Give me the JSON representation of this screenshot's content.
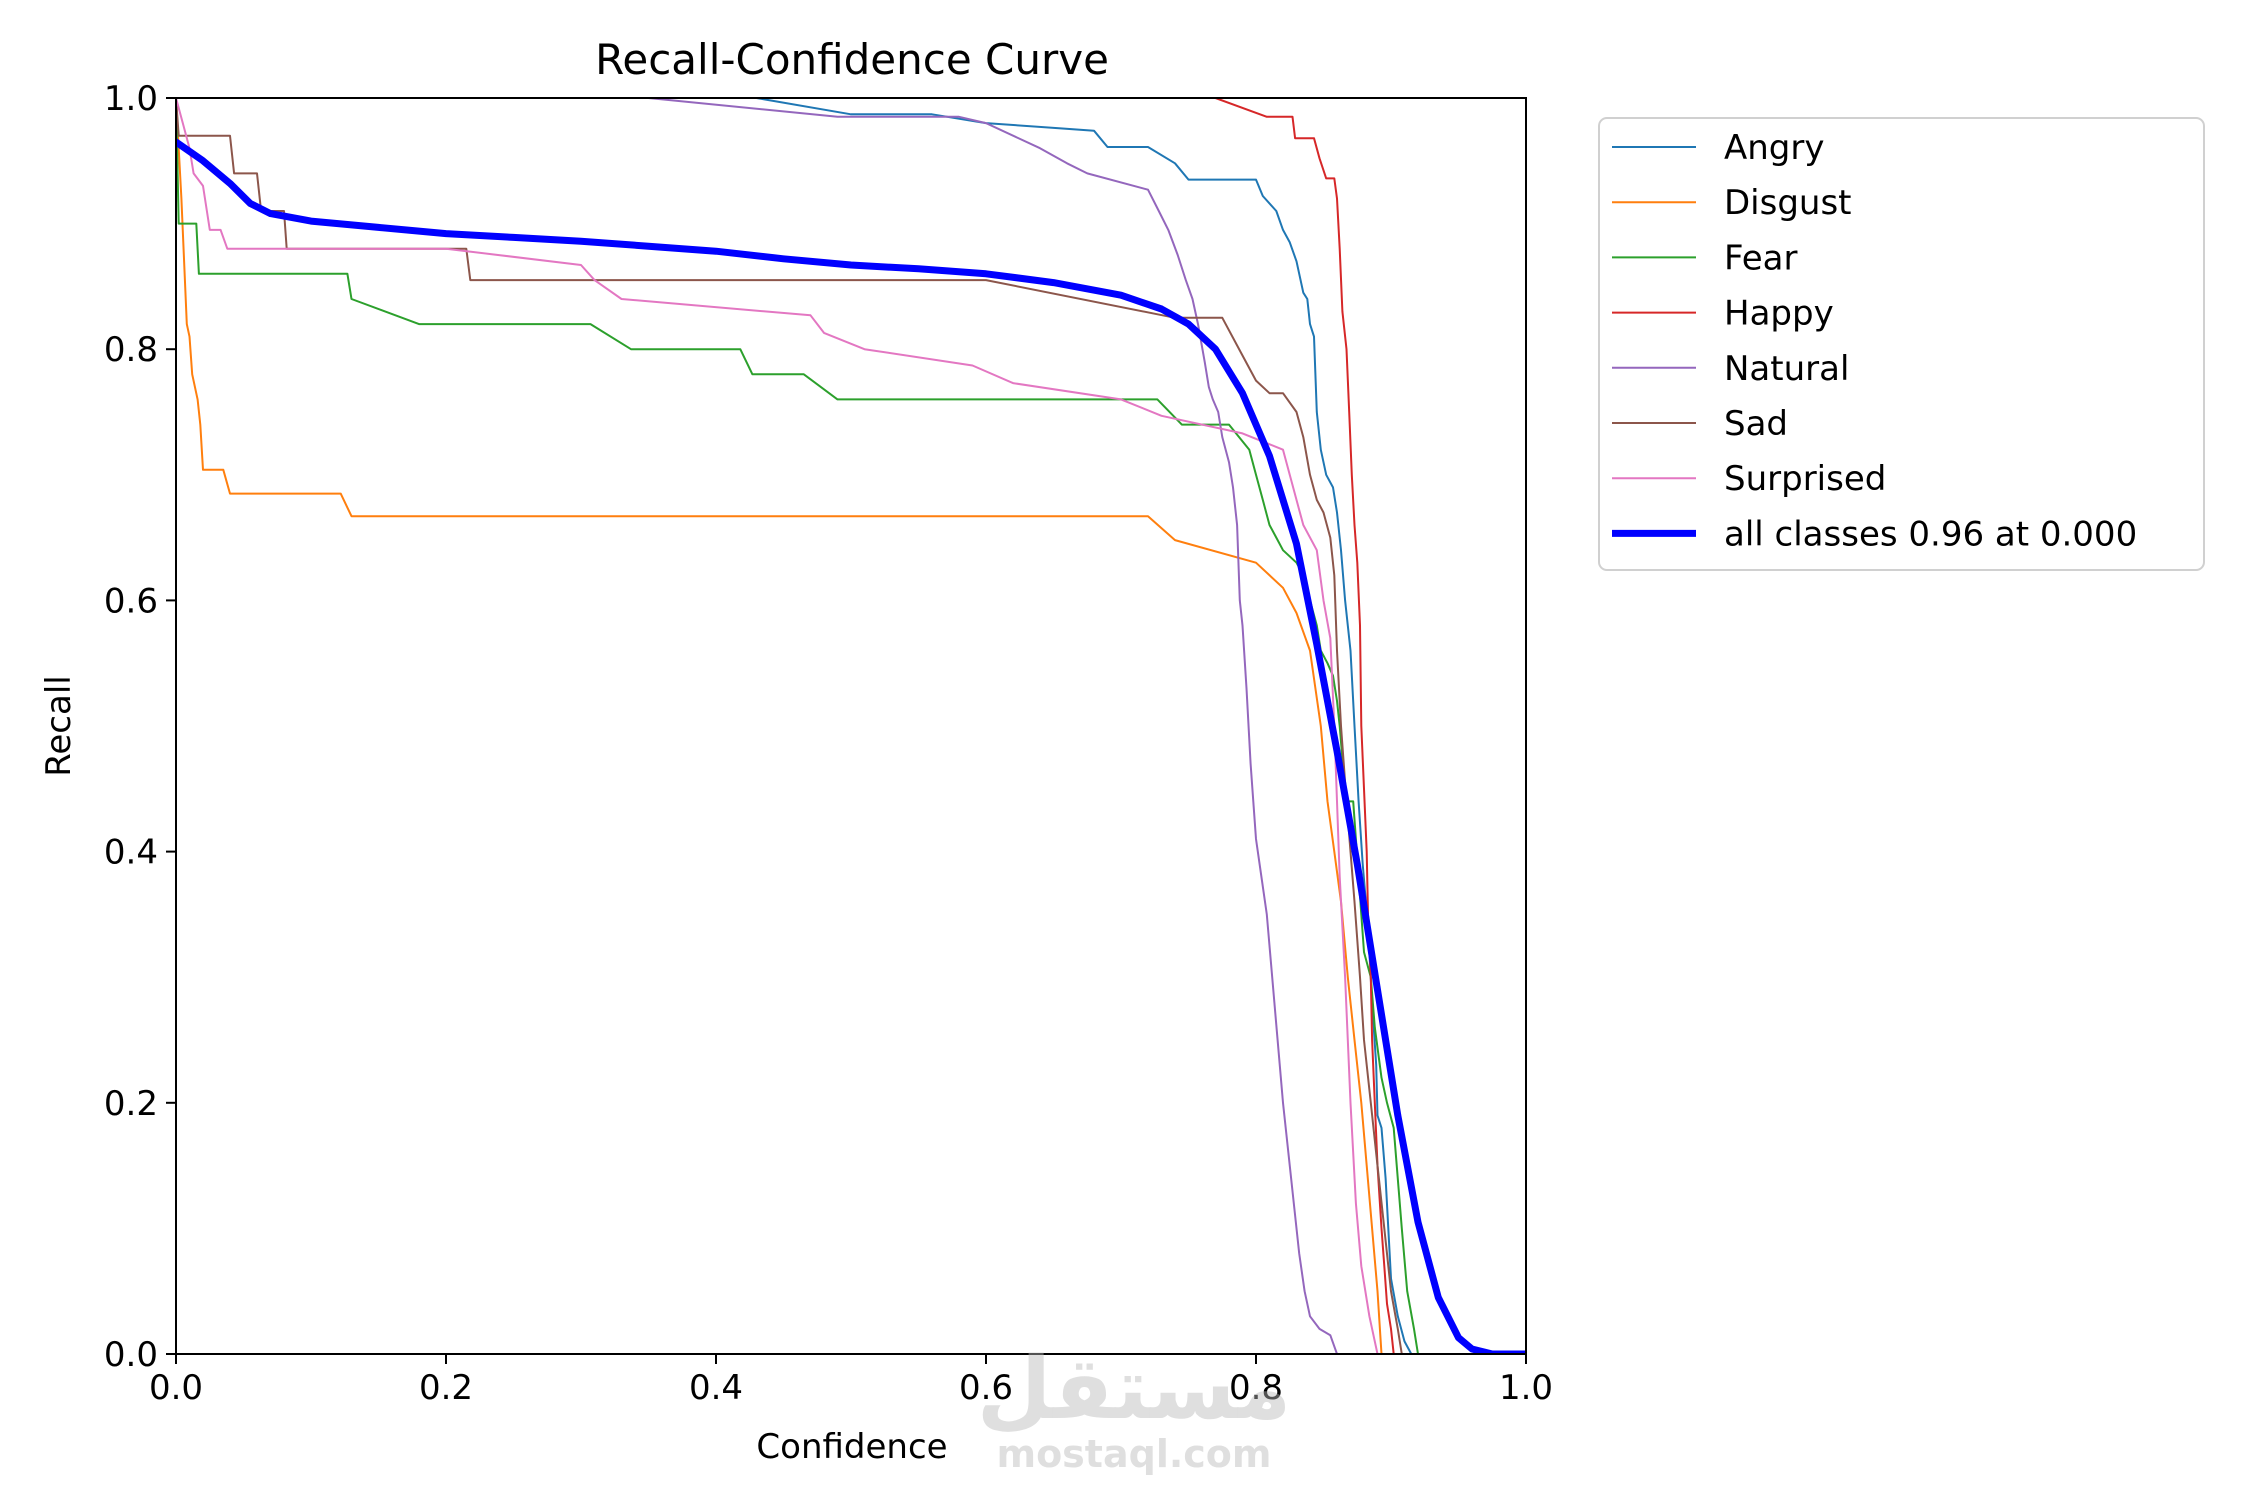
{
  "chart_data": {
    "type": "line",
    "title": "Recall-Confidence Curve",
    "xlabel": "Confidence",
    "ylabel": "Recall",
    "xlim": [
      0,
      1
    ],
    "ylim": [
      0,
      1
    ],
    "xticks": [
      "0.0",
      "0.2",
      "0.4",
      "0.6",
      "0.8",
      "1.0"
    ],
    "yticks": [
      "0.0",
      "0.2",
      "0.4",
      "0.6",
      "0.8",
      "1.0"
    ],
    "grid": false,
    "legend_position": "outside top-right",
    "series": [
      {
        "name": "Angry",
        "color": "#1f77b4",
        "width": 2,
        "points": [
          [
            0.0,
            1.0
          ],
          [
            0.43,
            1.0
          ],
          [
            0.5,
            0.987
          ],
          [
            0.56,
            0.987
          ],
          [
            0.6,
            0.98
          ],
          [
            0.68,
            0.974
          ],
          [
            0.69,
            0.961
          ],
          [
            0.72,
            0.961
          ],
          [
            0.74,
            0.948
          ],
          [
            0.75,
            0.935
          ],
          [
            0.8,
            0.935
          ],
          [
            0.805,
            0.922
          ],
          [
            0.815,
            0.91
          ],
          [
            0.82,
            0.895
          ],
          [
            0.825,
            0.885
          ],
          [
            0.83,
            0.87
          ],
          [
            0.835,
            0.845
          ],
          [
            0.838,
            0.84
          ],
          [
            0.84,
            0.82
          ],
          [
            0.843,
            0.81
          ],
          [
            0.845,
            0.75
          ],
          [
            0.848,
            0.72
          ],
          [
            0.852,
            0.7
          ],
          [
            0.857,
            0.69
          ],
          [
            0.86,
            0.67
          ],
          [
            0.863,
            0.64
          ],
          [
            0.866,
            0.6
          ],
          [
            0.868,
            0.58
          ],
          [
            0.87,
            0.56
          ],
          [
            0.873,
            0.5
          ],
          [
            0.876,
            0.44
          ],
          [
            0.879,
            0.39
          ],
          [
            0.883,
            0.34
          ],
          [
            0.886,
            0.28
          ],
          [
            0.889,
            0.23
          ],
          [
            0.89,
            0.19
          ],
          [
            0.893,
            0.18
          ],
          [
            0.896,
            0.14
          ],
          [
            0.898,
            0.1
          ],
          [
            0.9,
            0.06
          ],
          [
            0.905,
            0.03
          ],
          [
            0.91,
            0.01
          ],
          [
            0.915,
            0.0
          ],
          [
            1.0,
            0.0
          ]
        ]
      },
      {
        "name": "Disgust",
        "color": "#ff7f0e",
        "width": 2,
        "points": [
          [
            0.0,
            1.0
          ],
          [
            0.004,
            0.92
          ],
          [
            0.008,
            0.82
          ],
          [
            0.01,
            0.81
          ],
          [
            0.012,
            0.78
          ],
          [
            0.016,
            0.76
          ],
          [
            0.018,
            0.74
          ],
          [
            0.02,
            0.704
          ],
          [
            0.035,
            0.704
          ],
          [
            0.04,
            0.685
          ],
          [
            0.122,
            0.685
          ],
          [
            0.13,
            0.667
          ],
          [
            0.72,
            0.667
          ],
          [
            0.74,
            0.648
          ],
          [
            0.8,
            0.63
          ],
          [
            0.82,
            0.61
          ],
          [
            0.83,
            0.59
          ],
          [
            0.84,
            0.56
          ],
          [
            0.848,
            0.5
          ],
          [
            0.853,
            0.44
          ],
          [
            0.858,
            0.4
          ],
          [
            0.863,
            0.36
          ],
          [
            0.868,
            0.3
          ],
          [
            0.873,
            0.25
          ],
          [
            0.878,
            0.2
          ],
          [
            0.882,
            0.15
          ],
          [
            0.886,
            0.1
          ],
          [
            0.89,
            0.05
          ],
          [
            0.893,
            0.0
          ],
          [
            1.0,
            0.0
          ]
        ]
      },
      {
        "name": "Fear",
        "color": "#2ca02c",
        "width": 2,
        "points": [
          [
            0.0,
            1.0
          ],
          [
            0.002,
            0.9
          ],
          [
            0.015,
            0.9
          ],
          [
            0.017,
            0.86
          ],
          [
            0.127,
            0.86
          ],
          [
            0.13,
            0.84
          ],
          [
            0.18,
            0.82
          ],
          [
            0.307,
            0.82
          ],
          [
            0.337,
            0.8
          ],
          [
            0.418,
            0.8
          ],
          [
            0.427,
            0.78
          ],
          [
            0.465,
            0.78
          ],
          [
            0.49,
            0.76
          ],
          [
            0.727,
            0.76
          ],
          [
            0.745,
            0.74
          ],
          [
            0.78,
            0.74
          ],
          [
            0.795,
            0.72
          ],
          [
            0.8,
            0.7
          ],
          [
            0.805,
            0.68
          ],
          [
            0.81,
            0.66
          ],
          [
            0.815,
            0.65
          ],
          [
            0.82,
            0.64
          ],
          [
            0.83,
            0.63
          ],
          [
            0.835,
            0.62
          ],
          [
            0.84,
            0.6
          ],
          [
            0.845,
            0.58
          ],
          [
            0.848,
            0.56
          ],
          [
            0.853,
            0.55
          ],
          [
            0.857,
            0.54
          ],
          [
            0.86,
            0.52
          ],
          [
            0.862,
            0.5
          ],
          [
            0.865,
            0.46
          ],
          [
            0.868,
            0.44
          ],
          [
            0.872,
            0.44
          ],
          [
            0.876,
            0.38
          ],
          [
            0.88,
            0.32
          ],
          [
            0.885,
            0.3
          ],
          [
            0.888,
            0.26
          ],
          [
            0.893,
            0.22
          ],
          [
            0.897,
            0.2
          ],
          [
            0.902,
            0.18
          ],
          [
            0.908,
            0.1
          ],
          [
            0.912,
            0.05
          ],
          [
            0.917,
            0.02
          ],
          [
            0.92,
            0.0
          ],
          [
            1.0,
            0.0
          ]
        ]
      },
      {
        "name": "Happy",
        "color": "#d62728",
        "width": 2,
        "points": [
          [
            0.77,
            1.0
          ],
          [
            0.808,
            0.985
          ],
          [
            0.827,
            0.985
          ],
          [
            0.829,
            0.968
          ],
          [
            0.843,
            0.968
          ],
          [
            0.847,
            0.952
          ],
          [
            0.852,
            0.936
          ],
          [
            0.858,
            0.936
          ],
          [
            0.86,
            0.92
          ],
          [
            0.862,
            0.88
          ],
          [
            0.864,
            0.83
          ],
          [
            0.867,
            0.8
          ],
          [
            0.869,
            0.75
          ],
          [
            0.871,
            0.7
          ],
          [
            0.873,
            0.66
          ],
          [
            0.875,
            0.63
          ],
          [
            0.877,
            0.58
          ],
          [
            0.878,
            0.5
          ],
          [
            0.88,
            0.45
          ],
          [
            0.882,
            0.4
          ],
          [
            0.883,
            0.35
          ],
          [
            0.885,
            0.3
          ],
          [
            0.886,
            0.25
          ],
          [
            0.888,
            0.2
          ],
          [
            0.89,
            0.15
          ],
          [
            0.893,
            0.1
          ],
          [
            0.895,
            0.07
          ],
          [
            0.897,
            0.04
          ],
          [
            0.9,
            0.02
          ],
          [
            0.902,
            0.0
          ],
          [
            1.0,
            0.0
          ]
        ]
      },
      {
        "name": "Natural",
        "color": "#9467bd",
        "width": 2,
        "points": [
          [
            0.35,
            1.0
          ],
          [
            0.49,
            0.985
          ],
          [
            0.58,
            0.985
          ],
          [
            0.6,
            0.98
          ],
          [
            0.64,
            0.96
          ],
          [
            0.66,
            0.948
          ],
          [
            0.675,
            0.94
          ],
          [
            0.72,
            0.927
          ],
          [
            0.728,
            0.91
          ],
          [
            0.735,
            0.895
          ],
          [
            0.742,
            0.875
          ],
          [
            0.748,
            0.855
          ],
          [
            0.753,
            0.84
          ],
          [
            0.757,
            0.82
          ],
          [
            0.762,
            0.79
          ],
          [
            0.765,
            0.77
          ],
          [
            0.768,
            0.76
          ],
          [
            0.772,
            0.75
          ],
          [
            0.775,
            0.73
          ],
          [
            0.78,
            0.71
          ],
          [
            0.783,
            0.69
          ],
          [
            0.786,
            0.66
          ],
          [
            0.788,
            0.6
          ],
          [
            0.79,
            0.58
          ],
          [
            0.793,
            0.53
          ],
          [
            0.796,
            0.47
          ],
          [
            0.798,
            0.44
          ],
          [
            0.8,
            0.41
          ],
          [
            0.804,
            0.38
          ],
          [
            0.808,
            0.35
          ],
          [
            0.812,
            0.3
          ],
          [
            0.816,
            0.25
          ],
          [
            0.82,
            0.2
          ],
          [
            0.824,
            0.16
          ],
          [
            0.828,
            0.12
          ],
          [
            0.832,
            0.08
          ],
          [
            0.836,
            0.05
          ],
          [
            0.84,
            0.03
          ],
          [
            0.847,
            0.02
          ],
          [
            0.855,
            0.015
          ],
          [
            0.86,
            0.0
          ],
          [
            1.0,
            0.0
          ]
        ]
      },
      {
        "name": "Sad",
        "color": "#8c564b",
        "width": 2,
        "points": [
          [
            0.0,
            1.0
          ],
          [
            0.002,
            0.97
          ],
          [
            0.04,
            0.97
          ],
          [
            0.043,
            0.94
          ],
          [
            0.06,
            0.94
          ],
          [
            0.063,
            0.91
          ],
          [
            0.08,
            0.91
          ],
          [
            0.082,
            0.88
          ],
          [
            0.215,
            0.88
          ],
          [
            0.218,
            0.855
          ],
          [
            0.6,
            0.855
          ],
          [
            0.74,
            0.825
          ],
          [
            0.775,
            0.825
          ],
          [
            0.79,
            0.795
          ],
          [
            0.8,
            0.775
          ],
          [
            0.81,
            0.765
          ],
          [
            0.82,
            0.765
          ],
          [
            0.83,
            0.75
          ],
          [
            0.835,
            0.73
          ],
          [
            0.84,
            0.7
          ],
          [
            0.845,
            0.68
          ],
          [
            0.85,
            0.67
          ],
          [
            0.855,
            0.65
          ],
          [
            0.858,
            0.62
          ],
          [
            0.86,
            0.56
          ],
          [
            0.863,
            0.5
          ],
          [
            0.867,
            0.44
          ],
          [
            0.87,
            0.4
          ],
          [
            0.873,
            0.36
          ],
          [
            0.877,
            0.3
          ],
          [
            0.88,
            0.25
          ],
          [
            0.885,
            0.2
          ],
          [
            0.89,
            0.15
          ],
          [
            0.895,
            0.1
          ],
          [
            0.9,
            0.05
          ],
          [
            0.905,
            0.02
          ],
          [
            0.908,
            0.0
          ],
          [
            1.0,
            0.0
          ]
        ]
      },
      {
        "name": "Surprised",
        "color": "#e377c2",
        "width": 2,
        "points": [
          [
            0.0,
            1.0
          ],
          [
            0.005,
            0.98
          ],
          [
            0.01,
            0.96
          ],
          [
            0.013,
            0.94
          ],
          [
            0.02,
            0.93
          ],
          [
            0.025,
            0.895
          ],
          [
            0.033,
            0.895
          ],
          [
            0.038,
            0.88
          ],
          [
            0.2,
            0.88
          ],
          [
            0.3,
            0.867
          ],
          [
            0.31,
            0.855
          ],
          [
            0.33,
            0.84
          ],
          [
            0.47,
            0.827
          ],
          [
            0.48,
            0.813
          ],
          [
            0.51,
            0.8
          ],
          [
            0.59,
            0.787
          ],
          [
            0.62,
            0.773
          ],
          [
            0.7,
            0.76
          ],
          [
            0.73,
            0.747
          ],
          [
            0.79,
            0.733
          ],
          [
            0.82,
            0.72
          ],
          [
            0.83,
            0.68
          ],
          [
            0.835,
            0.66
          ],
          [
            0.845,
            0.64
          ],
          [
            0.85,
            0.6
          ],
          [
            0.855,
            0.57
          ],
          [
            0.858,
            0.5
          ],
          [
            0.86,
            0.44
          ],
          [
            0.862,
            0.38
          ],
          [
            0.866,
            0.3
          ],
          [
            0.87,
            0.2
          ],
          [
            0.874,
            0.12
          ],
          [
            0.878,
            0.07
          ],
          [
            0.884,
            0.03
          ],
          [
            0.89,
            0.0
          ],
          [
            1.0,
            0.0
          ]
        ]
      },
      {
        "name": "all classes 0.96 at 0.000",
        "color": "#0000ff",
        "width": 7,
        "points": [
          [
            0.0,
            0.965
          ],
          [
            0.02,
            0.95
          ],
          [
            0.04,
            0.932
          ],
          [
            0.055,
            0.916
          ],
          [
            0.07,
            0.908
          ],
          [
            0.1,
            0.902
          ],
          [
            0.15,
            0.897
          ],
          [
            0.2,
            0.892
          ],
          [
            0.25,
            0.889
          ],
          [
            0.3,
            0.886
          ],
          [
            0.35,
            0.882
          ],
          [
            0.4,
            0.878
          ],
          [
            0.45,
            0.872
          ],
          [
            0.5,
            0.867
          ],
          [
            0.55,
            0.864
          ],
          [
            0.6,
            0.86
          ],
          [
            0.65,
            0.853
          ],
          [
            0.7,
            0.843
          ],
          [
            0.73,
            0.832
          ],
          [
            0.75,
            0.82
          ],
          [
            0.77,
            0.8
          ],
          [
            0.79,
            0.765
          ],
          [
            0.81,
            0.715
          ],
          [
            0.83,
            0.645
          ],
          [
            0.845,
            0.565
          ],
          [
            0.86,
            0.48
          ],
          [
            0.875,
            0.39
          ],
          [
            0.89,
            0.29
          ],
          [
            0.905,
            0.19
          ],
          [
            0.92,
            0.105
          ],
          [
            0.935,
            0.045
          ],
          [
            0.95,
            0.013
          ],
          [
            0.96,
            0.004
          ],
          [
            0.975,
            0.0
          ],
          [
            1.0,
            0.0
          ]
        ]
      }
    ]
  },
  "watermark": {
    "arabic": "مستقل",
    "latin": "mostaql.com"
  }
}
